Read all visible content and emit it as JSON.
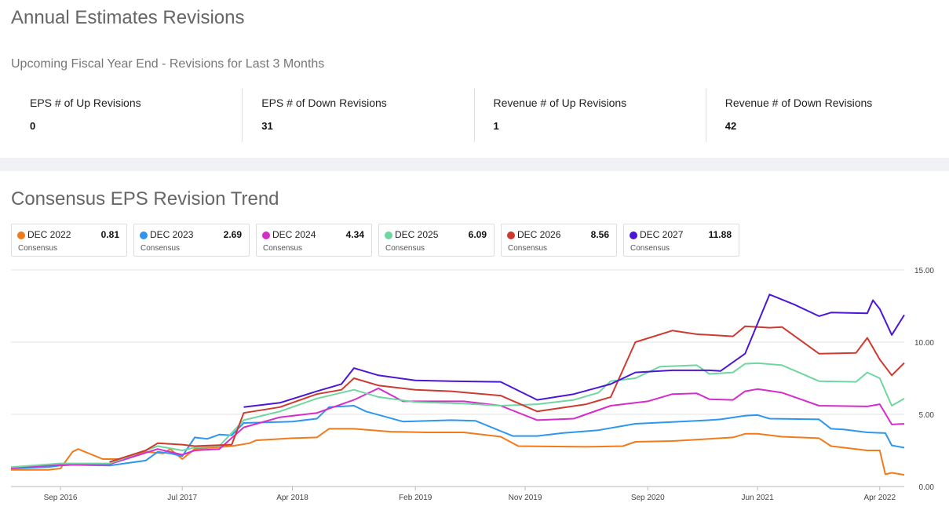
{
  "header": {
    "title": "Annual Estimates Revisions",
    "subtitle": "Upcoming Fiscal Year End - Revisions for Last 3 Months"
  },
  "stats": [
    {
      "label": "EPS # of Up Revisions",
      "value": "0"
    },
    {
      "label": "EPS # of Down Revisions",
      "value": "31"
    },
    {
      "label": "Revenue # of Up Revisions",
      "value": "1"
    },
    {
      "label": "Revenue # of Down Revisions",
      "value": "42"
    }
  ],
  "chart_section": {
    "title": "Consensus EPS Revision Trend"
  },
  "legend": [
    {
      "name": "DEC 2022",
      "value": "0.81",
      "sub": "Consensus",
      "color": "#f07b1c"
    },
    {
      "name": "DEC 2023",
      "value": "2.69",
      "sub": "Consensus",
      "color": "#2d96ee"
    },
    {
      "name": "DEC 2024",
      "value": "4.34",
      "sub": "Consensus",
      "color": "#d62ccb"
    },
    {
      "name": "DEC 2025",
      "value": "6.09",
      "sub": "Consensus",
      "color": "#6fd6a0"
    },
    {
      "name": "DEC 2026",
      "value": "8.56",
      "sub": "Consensus",
      "color": "#cf3a30"
    },
    {
      "name": "DEC 2027",
      "value": "11.88",
      "sub": "Consensus",
      "color": "#4b16d6"
    }
  ],
  "chart_data": {
    "type": "line",
    "title": "Consensus EPS Revision Trend",
    "xlabel": "",
    "ylabel": "",
    "x_range": [
      "2016-05-01",
      "2022-06-01"
    ],
    "ylim": [
      0,
      15
    ],
    "x_ticks": [
      {
        "date": "2016-09-01",
        "label": "Sep 2016"
      },
      {
        "date": "2017-07-01",
        "label": "Jul 2017"
      },
      {
        "date": "2018-04-01",
        "label": "Apr 2018"
      },
      {
        "date": "2019-02-01",
        "label": "Feb 2019"
      },
      {
        "date": "2019-11-01",
        "label": "Nov 2019"
      },
      {
        "date": "2020-09-01",
        "label": "Sep 2020"
      },
      {
        "date": "2021-06-01",
        "label": "Jun 2021"
      },
      {
        "date": "2022-04-01",
        "label": "Apr 2022"
      }
    ],
    "y_ticks": [
      {
        "value": 0,
        "label": "0.00"
      },
      {
        "value": 5,
        "label": "5.00"
      },
      {
        "value": 10,
        "label": "10.00"
      },
      {
        "value": 15,
        "label": "15.00"
      }
    ],
    "grid": "horizontal",
    "series": [
      {
        "name": "DEC 2022",
        "color": "#f07b1c",
        "points": [
          [
            "2016-05-01",
            1.15
          ],
          [
            "2016-08-01",
            1.15
          ],
          [
            "2016-09-01",
            1.25
          ],
          [
            "2016-10-01",
            2.4
          ],
          [
            "2016-10-15",
            2.6
          ],
          [
            "2016-12-15",
            1.9
          ],
          [
            "2017-02-01",
            1.9
          ],
          [
            "2017-04-01",
            2.4
          ],
          [
            "2017-05-15",
            2.3
          ],
          [
            "2017-06-01",
            2.6
          ],
          [
            "2017-07-01",
            1.9
          ],
          [
            "2017-08-01",
            2.6
          ],
          [
            "2017-11-01",
            2.8
          ],
          [
            "2017-12-15",
            3.0
          ],
          [
            "2018-01-01",
            3.2
          ],
          [
            "2018-04-01",
            3.35
          ],
          [
            "2018-06-01",
            3.4
          ],
          [
            "2018-07-01",
            4.0
          ],
          [
            "2018-09-01",
            4.0
          ],
          [
            "2018-12-01",
            3.8
          ],
          [
            "2019-03-01",
            3.75
          ],
          [
            "2019-06-01",
            3.75
          ],
          [
            "2019-09-01",
            3.45
          ],
          [
            "2019-10-15",
            2.8
          ],
          [
            "2020-04-01",
            2.75
          ],
          [
            "2020-07-01",
            2.8
          ],
          [
            "2020-08-01",
            3.1
          ],
          [
            "2020-11-01",
            3.15
          ],
          [
            "2021-02-01",
            3.3
          ],
          [
            "2021-04-01",
            3.4
          ],
          [
            "2021-05-01",
            3.65
          ],
          [
            "2021-06-01",
            3.65
          ],
          [
            "2021-08-01",
            3.45
          ],
          [
            "2021-11-01",
            3.35
          ],
          [
            "2021-12-01",
            2.8
          ],
          [
            "2022-02-01",
            2.6
          ],
          [
            "2022-03-01",
            2.5
          ],
          [
            "2022-04-01",
            2.5
          ],
          [
            "2022-04-15",
            0.85
          ],
          [
            "2022-05-01",
            0.95
          ],
          [
            "2022-06-01",
            0.81
          ]
        ]
      },
      {
        "name": "DEC 2023",
        "color": "#2d96ee",
        "points": [
          [
            "2016-05-01",
            1.25
          ],
          [
            "2016-08-01",
            1.35
          ],
          [
            "2016-09-01",
            1.45
          ],
          [
            "2016-10-01",
            1.5
          ],
          [
            "2017-01-01",
            1.45
          ],
          [
            "2017-04-01",
            1.8
          ],
          [
            "2017-05-01",
            2.4
          ],
          [
            "2017-06-01",
            2.3
          ],
          [
            "2017-07-01",
            2.1
          ],
          [
            "2017-08-01",
            3.4
          ],
          [
            "2017-09-01",
            3.3
          ],
          [
            "2017-10-01",
            3.6
          ],
          [
            "2017-11-01",
            3.55
          ],
          [
            "2017-12-01",
            4.4
          ],
          [
            "2018-04-01",
            4.5
          ],
          [
            "2018-06-01",
            4.7
          ],
          [
            "2018-07-01",
            5.5
          ],
          [
            "2018-09-01",
            5.6
          ],
          [
            "2018-10-01",
            5.2
          ],
          [
            "2019-01-01",
            4.5
          ],
          [
            "2019-05-01",
            4.6
          ],
          [
            "2019-07-01",
            4.55
          ],
          [
            "2019-10-01",
            3.5
          ],
          [
            "2019-12-01",
            3.5
          ],
          [
            "2020-02-01",
            3.7
          ],
          [
            "2020-05-01",
            3.9
          ],
          [
            "2020-08-01",
            4.35
          ],
          [
            "2021-02-01",
            4.6
          ],
          [
            "2021-03-01",
            4.65
          ],
          [
            "2021-05-01",
            4.9
          ],
          [
            "2021-06-01",
            4.95
          ],
          [
            "2021-07-01",
            4.7
          ],
          [
            "2021-11-01",
            4.65
          ],
          [
            "2021-12-01",
            4.0
          ],
          [
            "2022-01-01",
            3.95
          ],
          [
            "2022-03-01",
            3.75
          ],
          [
            "2022-04-15",
            3.7
          ],
          [
            "2022-05-01",
            2.85
          ],
          [
            "2022-06-01",
            2.69
          ]
        ]
      },
      {
        "name": "DEC 2024",
        "color": "#d62ccb",
        "points": [
          [
            "2016-05-01",
            1.3
          ],
          [
            "2016-09-01",
            1.5
          ],
          [
            "2017-01-01",
            1.55
          ],
          [
            "2017-05-01",
            2.6
          ],
          [
            "2017-07-01",
            2.2
          ],
          [
            "2017-08-01",
            2.5
          ],
          [
            "2017-10-01",
            2.6
          ],
          [
            "2017-12-01",
            4.1
          ],
          [
            "2018-03-01",
            4.8
          ],
          [
            "2018-06-01",
            5.1
          ],
          [
            "2018-09-01",
            6.0
          ],
          [
            "2018-11-01",
            6.8
          ],
          [
            "2019-01-01",
            5.9
          ],
          [
            "2019-06-01",
            5.9
          ],
          [
            "2019-09-01",
            5.6
          ],
          [
            "2019-12-01",
            4.6
          ],
          [
            "2020-03-01",
            4.7
          ],
          [
            "2020-05-01",
            5.3
          ],
          [
            "2020-06-01",
            5.6
          ],
          [
            "2020-09-01",
            5.9
          ],
          [
            "2020-11-01",
            6.4
          ],
          [
            "2021-01-01",
            6.45
          ],
          [
            "2021-02-01",
            6.05
          ],
          [
            "2021-04-01",
            6.0
          ],
          [
            "2021-05-01",
            6.6
          ],
          [
            "2021-06-01",
            6.75
          ],
          [
            "2021-08-01",
            6.5
          ],
          [
            "2021-11-01",
            5.6
          ],
          [
            "2022-03-01",
            5.55
          ],
          [
            "2022-04-01",
            5.7
          ],
          [
            "2022-05-01",
            4.3
          ],
          [
            "2022-06-01",
            4.34
          ]
        ]
      },
      {
        "name": "DEC 2025",
        "color": "#6fd6a0",
        "points": [
          [
            "2016-05-01",
            1.35
          ],
          [
            "2016-09-01",
            1.6
          ],
          [
            "2017-01-01",
            1.6
          ],
          [
            "2017-05-01",
            2.8
          ],
          [
            "2017-07-01",
            2.5
          ],
          [
            "2017-08-01",
            2.7
          ],
          [
            "2017-10-01",
            2.8
          ],
          [
            "2017-12-01",
            4.6
          ],
          [
            "2018-03-01",
            5.2
          ],
          [
            "2018-06-01",
            6.1
          ],
          [
            "2018-09-01",
            6.7
          ],
          [
            "2018-11-01",
            6.2
          ],
          [
            "2019-02-01",
            5.85
          ],
          [
            "2019-06-01",
            5.75
          ],
          [
            "2019-09-01",
            5.6
          ],
          [
            "2019-12-01",
            5.7
          ],
          [
            "2020-03-01",
            6.0
          ],
          [
            "2020-05-01",
            6.5
          ],
          [
            "2020-06-01",
            7.3
          ],
          [
            "2020-08-01",
            7.5
          ],
          [
            "2020-10-01",
            8.3
          ],
          [
            "2021-01-01",
            8.4
          ],
          [
            "2021-02-01",
            7.8
          ],
          [
            "2021-04-01",
            7.9
          ],
          [
            "2021-05-01",
            8.5
          ],
          [
            "2021-06-01",
            8.55
          ],
          [
            "2021-08-01",
            8.4
          ],
          [
            "2021-11-01",
            7.3
          ],
          [
            "2022-02-01",
            7.25
          ],
          [
            "2022-03-01",
            7.9
          ],
          [
            "2022-04-01",
            7.5
          ],
          [
            "2022-05-01",
            5.6
          ],
          [
            "2022-06-01",
            6.09
          ]
        ]
      },
      {
        "name": "DEC 2026",
        "color": "#cf3a30",
        "points": [
          [
            "2017-01-01",
            1.7
          ],
          [
            "2017-04-01",
            2.5
          ],
          [
            "2017-05-01",
            3.0
          ],
          [
            "2017-07-01",
            2.9
          ],
          [
            "2017-08-01",
            2.8
          ],
          [
            "2017-11-01",
            2.9
          ],
          [
            "2017-12-01",
            5.1
          ],
          [
            "2018-03-01",
            5.5
          ],
          [
            "2018-06-01",
            6.4
          ],
          [
            "2018-08-01",
            6.7
          ],
          [
            "2018-09-01",
            7.5
          ],
          [
            "2018-11-01",
            7.0
          ],
          [
            "2019-02-01",
            6.7
          ],
          [
            "2019-05-01",
            6.6
          ],
          [
            "2019-09-01",
            6.3
          ],
          [
            "2019-12-01",
            5.2
          ],
          [
            "2020-04-01",
            5.7
          ],
          [
            "2020-06-01",
            6.2
          ],
          [
            "2020-08-01",
            10.0
          ],
          [
            "2020-11-01",
            10.8
          ],
          [
            "2021-01-01",
            10.55
          ],
          [
            "2021-02-01",
            10.5
          ],
          [
            "2021-04-01",
            10.4
          ],
          [
            "2021-05-01",
            11.1
          ],
          [
            "2021-07-01",
            11.0
          ],
          [
            "2021-08-01",
            11.05
          ],
          [
            "2021-11-01",
            9.2
          ],
          [
            "2022-02-01",
            9.25
          ],
          [
            "2022-03-01",
            10.3
          ],
          [
            "2022-04-01",
            8.8
          ],
          [
            "2022-05-01",
            7.7
          ],
          [
            "2022-06-01",
            8.56
          ]
        ]
      },
      {
        "name": "DEC 2027",
        "color": "#4b16d6",
        "points": [
          [
            "2017-12-01",
            5.5
          ],
          [
            "2018-03-01",
            5.8
          ],
          [
            "2018-06-01",
            6.6
          ],
          [
            "2018-08-01",
            7.1
          ],
          [
            "2018-09-01",
            8.2
          ],
          [
            "2018-11-01",
            7.7
          ],
          [
            "2019-02-01",
            7.35
          ],
          [
            "2019-05-01",
            7.3
          ],
          [
            "2019-09-01",
            7.25
          ],
          [
            "2019-12-01",
            6.0
          ],
          [
            "2020-03-01",
            6.4
          ],
          [
            "2020-06-01",
            7.1
          ],
          [
            "2020-08-01",
            7.9
          ],
          [
            "2020-11-01",
            8.05
          ],
          [
            "2021-02-01",
            8.05
          ],
          [
            "2021-03-01",
            8.0
          ],
          [
            "2021-05-01",
            9.2
          ],
          [
            "2021-07-01",
            13.3
          ],
          [
            "2021-09-01",
            12.6
          ],
          [
            "2021-11-01",
            11.8
          ],
          [
            "2021-12-01",
            12.05
          ],
          [
            "2022-03-01",
            12.0
          ],
          [
            "2022-03-15",
            12.9
          ],
          [
            "2022-04-01",
            12.3
          ],
          [
            "2022-05-01",
            10.5
          ],
          [
            "2022-06-01",
            11.88
          ]
        ]
      }
    ]
  }
}
